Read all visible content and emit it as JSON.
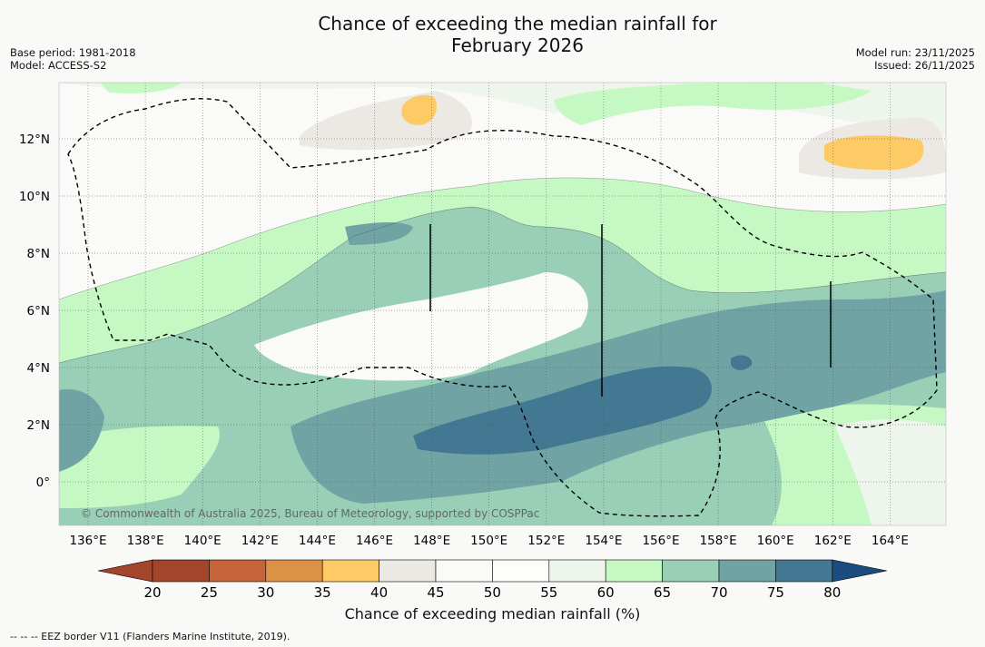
{
  "title": {
    "line1": "Chance of exceeding the median rainfall for",
    "line2": "February 2026"
  },
  "meta_left": {
    "base_period": "Base period: 1981-2018",
    "model": "Model: ACCESS-S2"
  },
  "meta_right": {
    "model_run": "Model run: 23/11/2025",
    "issued": "Issued: 26/11/2025"
  },
  "map": {
    "lon_labels": [
      "136°E",
      "138°E",
      "140°E",
      "142°E",
      "144°E",
      "146°E",
      "148°E",
      "150°E",
      "152°E",
      "154°E",
      "156°E",
      "158°E",
      "160°E",
      "162°E",
      "164°E"
    ],
    "lat_labels": [
      "12°N",
      "10°N",
      "8°N",
      "6°N",
      "4°N",
      "2°N",
      "0°"
    ],
    "copyright": "© Commonwealth of Australia 2025, Bureau of Meteorology, supported by COSPPac",
    "colors": {
      "c20": "#a2452a",
      "c25": "#c6633a",
      "c30": "#dd9147",
      "c35": "#fdcb65",
      "c40": "#ece9e5",
      "c45": "#fafaf8",
      "c50": "#fdfdfc",
      "c55": "#eef5ec",
      "c60": "#c6f8c4",
      "c65": "#99cfb7",
      "c70": "#6fa3a4",
      "c75": "#437893",
      "c80": "#1c4c7e"
    }
  },
  "colorbar": {
    "ticks": [
      "20",
      "25",
      "30",
      "35",
      "40",
      "45",
      "50",
      "55",
      "60",
      "65",
      "70",
      "75",
      "80"
    ],
    "label": "Chance of exceeding median rainfall (%)"
  },
  "footnote": "--  --  -- EEZ border V11 (Flanders Marine Institute, 2019)."
}
